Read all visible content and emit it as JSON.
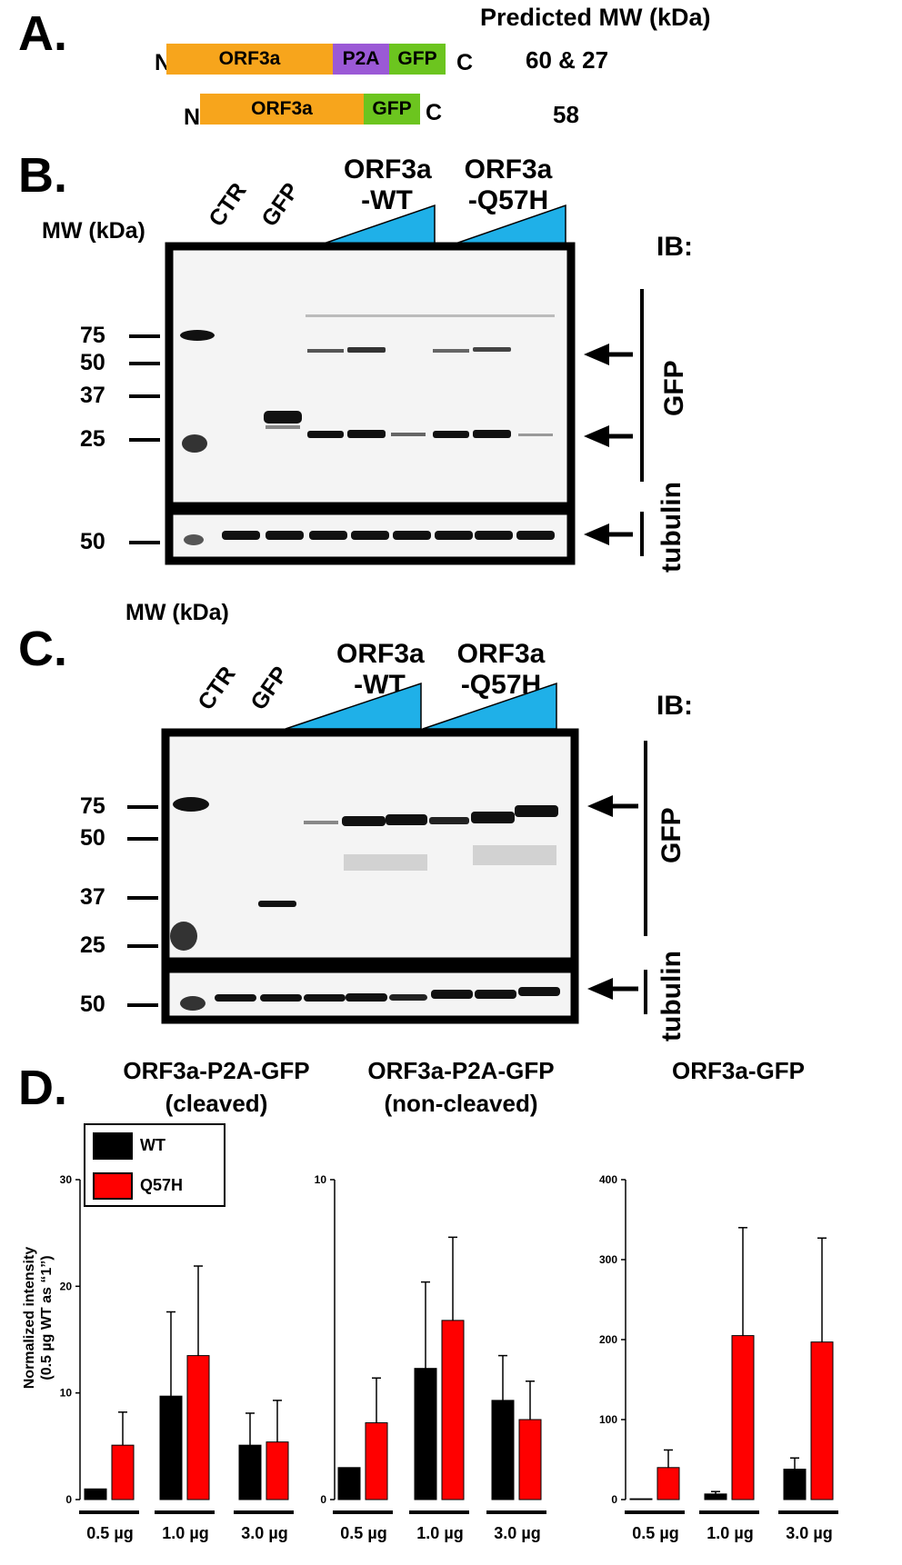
{
  "panel_a": {
    "letter": "A.",
    "header": "Predicted MW (kDa)",
    "constructs": [
      {
        "n": "N",
        "c": "C",
        "segments": [
          {
            "label": "ORF3a",
            "color": "#F7A51C"
          },
          {
            "label": "P2A",
            "color": "#9B59D6"
          },
          {
            "label": "GFP",
            "color": "#6CC51F"
          }
        ],
        "mw": "60 & 27"
      },
      {
        "n": "N",
        "c": "C",
        "segments": [
          {
            "label": "ORF3a",
            "color": "#F7A51C"
          },
          {
            "label": "GFP",
            "color": "#6CC51F"
          }
        ],
        "mw": "58"
      }
    ]
  },
  "panel_b": {
    "letter": "B.",
    "mw_title": "MW (kDa)",
    "lane_ctr": "CTR",
    "lane_gfp": "GFP",
    "group_wt": [
      "ORF3a",
      "-WT"
    ],
    "group_q57h": [
      "ORF3a",
      "-Q57H"
    ],
    "ib": "IB:",
    "mw_markers": [
      "75",
      "50",
      "37",
      "25"
    ],
    "tubulin_marker": "50",
    "gfp_label": "GFP",
    "tubulin_label": "tubulin",
    "wedge_color": "#1FB0E8"
  },
  "panel_c": {
    "letter": "C.",
    "mw_title": "MW (kDa)",
    "lane_ctr": "CTR",
    "lane_gfp": "GFP",
    "group_wt": [
      "ORF3a",
      "-WT"
    ],
    "group_q57h": [
      "ORF3a",
      "-Q57H"
    ],
    "ib": "IB:",
    "mw_markers": [
      "75",
      "50",
      "37",
      "25"
    ],
    "tubulin_marker": "50",
    "gfp_label": "GFP",
    "tubulin_label": "tubulin"
  },
  "panel_d": {
    "letter": "D.",
    "ylabel": [
      "Normalized intensity",
      "(0.5 µg WT as “1”)"
    ],
    "legend": [
      {
        "name": "WT",
        "color": "#000000"
      },
      {
        "name": "Q57H",
        "color": "#ff0000"
      }
    ],
    "doses": [
      "0.5 µg",
      "1.0 µg",
      "3.0 µg"
    ]
  },
  "chart_data": [
    {
      "type": "bar",
      "title": "ORF3a-P2A-GFP (cleaved)",
      "categories": [
        "0.5 µg",
        "1.0 µg",
        "3.0 µg"
      ],
      "ylim": [
        0,
        30
      ],
      "yticks": [
        "0",
        "10",
        "20",
        "30"
      ],
      "series": [
        {
          "name": "WT",
          "color": "#000000",
          "values": [
            1,
            9.7,
            5.1
          ],
          "err": [
            0,
            7.9,
            3.0
          ]
        },
        {
          "name": "Q57H",
          "color": "#ff0000",
          "values": [
            5.1,
            13.5,
            5.4
          ],
          "err": [
            3.1,
            8.4,
            3.9
          ]
        }
      ]
    },
    {
      "type": "bar",
      "title": "ORF3a-P2A-GFP (non-cleaved)",
      "categories": [
        "0.5 µg",
        "1.0 µg",
        "3.0 µg"
      ],
      "ylim": [
        0,
        10
      ],
      "yticks": [
        "0",
        "10"
      ],
      "series": [
        {
          "name": "WT",
          "color": "#000000",
          "values": [
            1,
            4.1,
            3.1
          ],
          "err": [
            0,
            2.7,
            1.4
          ]
        },
        {
          "name": "Q57H",
          "color": "#ff0000",
          "values": [
            2.4,
            5.6,
            2.5
          ],
          "err": [
            1.4,
            2.6,
            1.2
          ]
        }
      ]
    },
    {
      "type": "bar",
      "title": "ORF3a-GFP",
      "categories": [
        "0.5 µg",
        "1.0 µg",
        "3.0 µg"
      ],
      "ylim": [
        0,
        400
      ],
      "yticks": [
        "0",
        "100",
        "200",
        "300",
        "400"
      ],
      "series": [
        {
          "name": "WT",
          "color": "#000000",
          "values": [
            1,
            7,
            38
          ],
          "err": [
            0,
            3,
            14
          ]
        },
        {
          "name": "Q57H",
          "color": "#ff0000",
          "values": [
            40,
            205,
            197
          ],
          "err": [
            22,
            135,
            130
          ]
        }
      ]
    }
  ]
}
